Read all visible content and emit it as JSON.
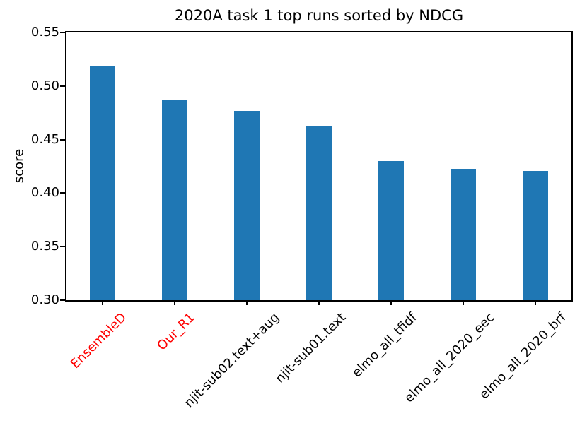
{
  "chart_data": {
    "type": "bar",
    "title": "2020A task 1 top runs sorted by NDCG",
    "xlabel": "",
    "ylabel": "score",
    "categories": [
      "EnsembleD",
      "Our_R1",
      "njit-sub02.text+aug",
      "njit-sub01.text",
      "elmo_all_tfidf",
      "elmo_all_2020_eec",
      "elmo_all_2020_brf"
    ],
    "values": [
      0.519,
      0.487,
      0.477,
      0.463,
      0.43,
      0.423,
      0.421
    ],
    "ylim": [
      0.3,
      0.55
    ],
    "yticks": [
      0.3,
      0.35,
      0.4,
      0.45,
      0.5,
      0.55
    ],
    "ytick_labels": [
      "0.30",
      "0.35",
      "0.40",
      "0.45",
      "0.50",
      "0.55"
    ],
    "bar_color": "#1f77b4",
    "xtick_label_colors": [
      "#ff0000",
      "#ff0000",
      "#000000",
      "#000000",
      "#000000",
      "#000000",
      "#000000"
    ],
    "xtick_rotation_deg": 45,
    "grid": false,
    "legend": null,
    "axis_color": "#000000",
    "background_color": "#ffffff"
  }
}
